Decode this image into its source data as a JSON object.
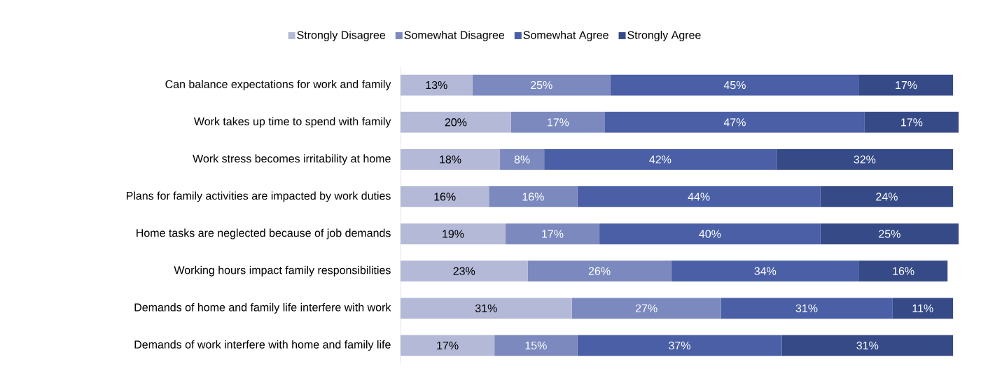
{
  "chart_data": {
    "type": "bar",
    "orientation": "horizontal",
    "stacked": true,
    "legend": "top",
    "categories": [
      "Can balance expectations for work and family",
      "Work takes up time to spend with family",
      "Work stress becomes irritability at home",
      "Plans for family activities are impacted by work duties",
      "Home tasks are neglected because of job demands",
      "Working hours impact family responsibilities",
      "Demands of home and family life interfere with work",
      "Demands of work interfere with home and family life"
    ],
    "series": [
      {
        "name": "Strongly Disagree",
        "color": "#b4b9d7",
        "values": [
          13,
          20,
          18,
          16,
          19,
          23,
          31,
          17
        ],
        "value_labels": [
          "13%",
          "20%",
          "18%",
          "16%",
          "19%",
          "23%",
          "31%",
          "17%"
        ]
      },
      {
        "name": "Somewhat Disagree",
        "color": "#7b89be",
        "values": [
          25,
          17,
          8,
          16,
          17,
          26,
          27,
          15
        ],
        "value_labels": [
          "25%",
          "17%",
          "8%",
          "16%",
          "17%",
          "26%",
          "27%",
          "15%"
        ]
      },
      {
        "name": "Somewhat Agree",
        "color": "#4a5fa5",
        "values": [
          45,
          47,
          42,
          44,
          40,
          34,
          31,
          37
        ],
        "value_labels": [
          "45%",
          "47%",
          "42%",
          "44%",
          "40%",
          "34%",
          "31%",
          "37%"
        ]
      },
      {
        "name": "Strongly Agree",
        "color": "#364a87",
        "values": [
          17,
          17,
          32,
          24,
          25,
          16,
          11,
          31
        ],
        "value_labels": [
          "17%",
          "17%",
          "32%",
          "24%",
          "25%",
          "16%",
          "11%",
          "31%"
        ]
      }
    ]
  }
}
